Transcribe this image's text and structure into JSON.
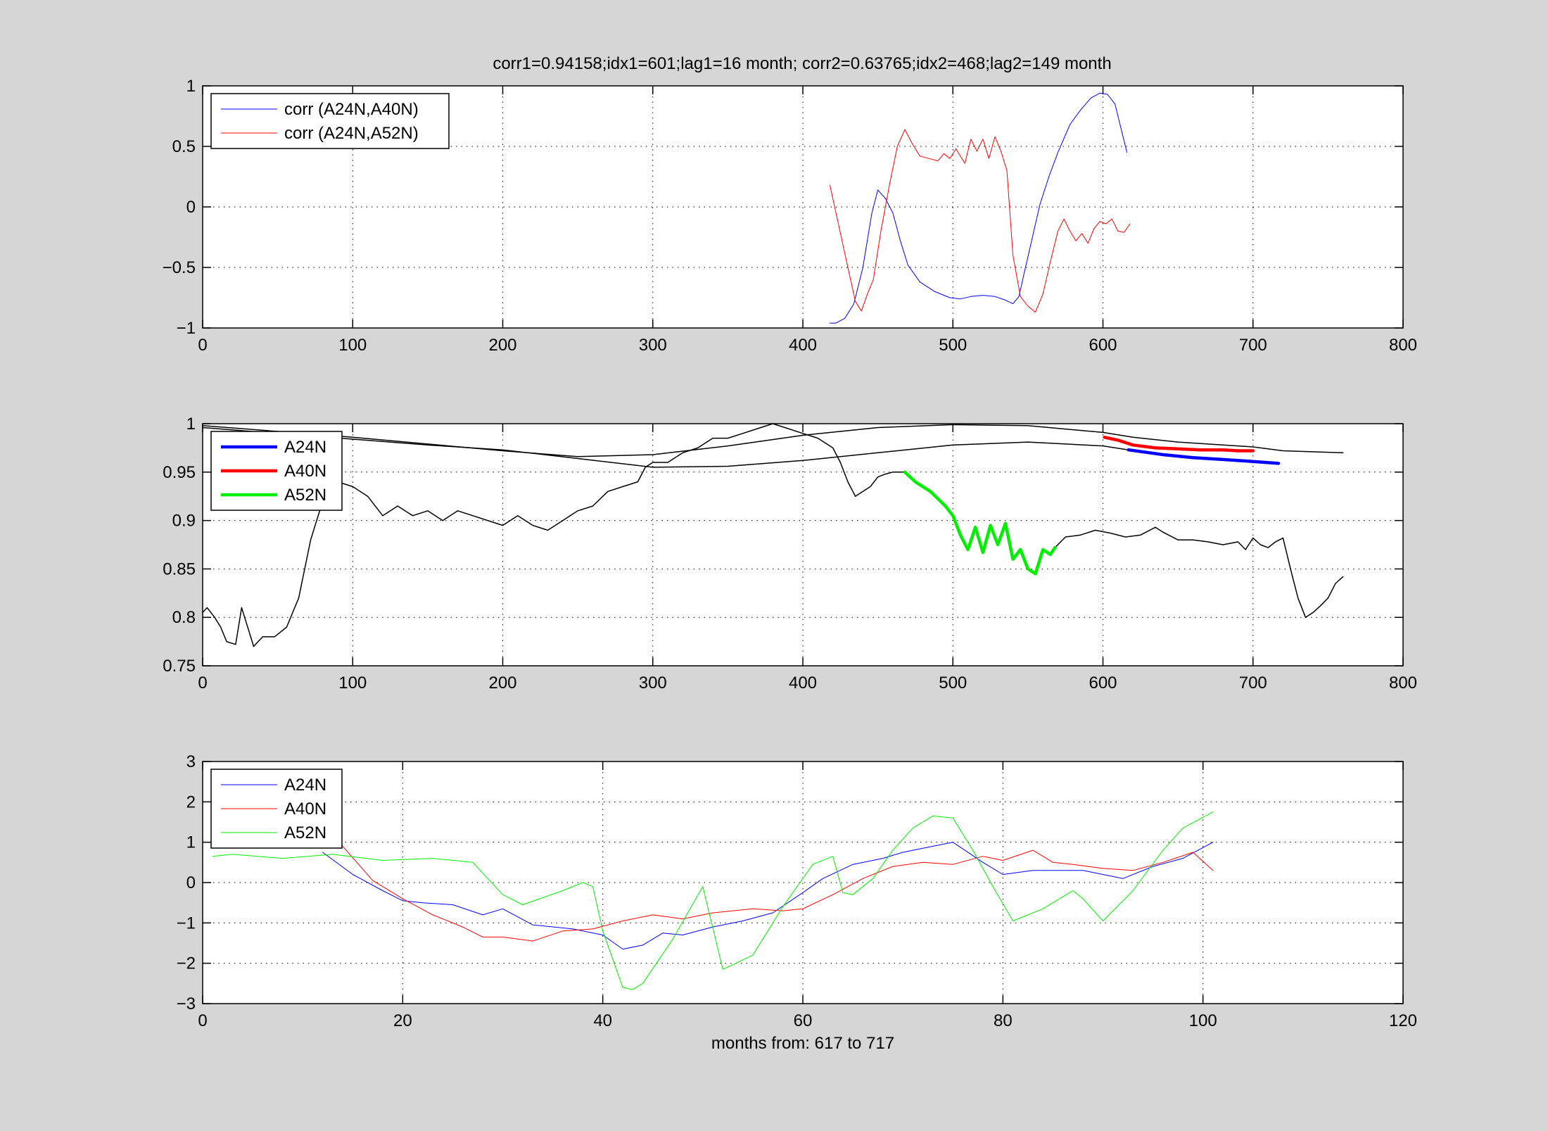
{
  "figure": {
    "background": "#d6d6d6",
    "axes_background": "#ffffff",
    "title": "corr1=0.94158;idx1=601;lag1=16 month;   corr2=0.63765;idx2=468;lag2=149 month"
  },
  "chart_data": [
    {
      "type": "line",
      "title": "corr1=0.94158;idx1=601;lag1=16 month;   corr2=0.63765;idx2=468;lag2=149 month",
      "xlabel": "",
      "ylabel": "",
      "xlim": [
        0,
        800
      ],
      "ylim": [
        -1,
        1
      ],
      "xticks": [
        0,
        100,
        200,
        300,
        400,
        500,
        600,
        700,
        800
      ],
      "yticks": [
        -1,
        -0.5,
        0,
        0.5,
        1
      ],
      "xtick_labels": [
        "0",
        "100",
        "200",
        "300",
        "400",
        "500",
        "600",
        "700",
        "800"
      ],
      "ytick_labels": [
        "−1",
        "−0.5",
        "0",
        "0.5",
        "1"
      ],
      "grid": true,
      "legend_position": "top-left",
      "series": [
        {
          "name": "corr (A24N,A40N)",
          "color": "#0000ff",
          "width": 1,
          "x": [
            418,
            422,
            428,
            434,
            440,
            446,
            450,
            455,
            460,
            465,
            470,
            478,
            488,
            498,
            505,
            512,
            520,
            528,
            535,
            540,
            544,
            548,
            553,
            558,
            564,
            570,
            578,
            585,
            592,
            598,
            603,
            608,
            612,
            616
          ],
          "y": [
            -0.96,
            -0.96,
            -0.92,
            -0.8,
            -0.5,
            -0.05,
            0.14,
            0.07,
            -0.05,
            -0.28,
            -0.48,
            -0.62,
            -0.7,
            -0.75,
            -0.76,
            -0.74,
            -0.73,
            -0.74,
            -0.77,
            -0.8,
            -0.74,
            -0.52,
            -0.25,
            0.02,
            0.25,
            0.45,
            0.68,
            0.8,
            0.9,
            0.94,
            0.93,
            0.85,
            0.65,
            0.45
          ]
        },
        {
          "name": "corr (A24N,A52N)",
          "color": "#ff0000",
          "width": 1,
          "x": [
            418,
            423,
            430,
            435,
            439,
            443,
            447,
            452,
            458,
            463,
            468,
            473,
            478,
            484,
            490,
            494,
            498,
            502,
            508,
            512,
            516,
            520,
            524,
            528,
            532,
            536,
            540,
            545,
            550,
            555,
            560,
            565,
            570,
            574,
            578,
            582,
            586,
            590,
            594,
            598,
            602,
            606,
            610,
            614,
            618
          ],
          "y": [
            0.18,
            -0.1,
            -0.5,
            -0.78,
            -0.86,
            -0.72,
            -0.6,
            -0.2,
            0.2,
            0.5,
            0.64,
            0.52,
            0.42,
            0.4,
            0.38,
            0.44,
            0.4,
            0.48,
            0.36,
            0.56,
            0.46,
            0.56,
            0.4,
            0.58,
            0.46,
            0.3,
            -0.4,
            -0.74,
            -0.82,
            -0.87,
            -0.72,
            -0.45,
            -0.2,
            -0.1,
            -0.2,
            -0.28,
            -0.22,
            -0.3,
            -0.18,
            -0.12,
            -0.14,
            -0.1,
            -0.2,
            -0.21,
            -0.14
          ]
        }
      ]
    },
    {
      "type": "line",
      "title": "",
      "xlabel": "",
      "ylabel": "",
      "xlim": [
        0,
        800
      ],
      "ylim": [
        0.75,
        1
      ],
      "xticks": [
        0,
        100,
        200,
        300,
        400,
        500,
        600,
        700,
        800
      ],
      "yticks": [
        0.75,
        0.8,
        0.85,
        0.9,
        0.95,
        1
      ],
      "xtick_labels": [
        "0",
        "100",
        "200",
        "300",
        "400",
        "500",
        "600",
        "700",
        "800"
      ],
      "ytick_labels": [
        "0.75",
        "0.8",
        "0.85",
        "0.9",
        "0.95",
        "1"
      ],
      "grid": true,
      "legend_position": "top-left",
      "series": [
        {
          "name": "",
          "color": "#000000",
          "width": 1.5,
          "x": [
            0,
            50,
            100,
            150,
            200,
            250,
            300,
            350,
            400,
            450,
            500,
            550,
            600,
            620,
            650,
            700,
            720,
            760
          ],
          "y": [
            0.998,
            0.992,
            0.986,
            0.979,
            0.972,
            0.966,
            0.968,
            0.977,
            0.988,
            0.996,
            0.999,
            0.998,
            0.991,
            0.986,
            0.981,
            0.976,
            0.972,
            0.97
          ]
        },
        {
          "name": "",
          "color": "#000000",
          "width": 1.5,
          "x": [
            0,
            50,
            100,
            150,
            200,
            250,
            300,
            350,
            400,
            450,
            500,
            550,
            600,
            617
          ],
          "y": [
            0.996,
            0.99,
            0.984,
            0.978,
            0.973,
            0.964,
            0.955,
            0.956,
            0.962,
            0.97,
            0.978,
            0.981,
            0.977,
            0.973
          ]
        },
        {
          "name": "",
          "color": "#000000",
          "width": 1.5,
          "x": [
            0,
            3,
            8,
            12,
            16,
            22,
            26,
            30,
            34,
            40,
            48,
            56,
            64,
            72,
            80,
            85,
            90,
            100,
            110,
            120,
            130,
            140,
            150,
            160,
            170,
            180,
            190,
            200,
            210,
            220,
            230,
            240,
            250,
            260,
            270,
            280,
            290,
            295,
            300,
            310,
            320,
            330,
            340,
            350,
            360,
            370,
            380,
            390,
            400,
            410,
            420,
            425,
            430,
            435,
            440,
            445,
            450,
            455,
            460,
            468
          ],
          "y": [
            0.805,
            0.81,
            0.8,
            0.79,
            0.775,
            0.772,
            0.81,
            0.79,
            0.77,
            0.78,
            0.78,
            0.79,
            0.82,
            0.88,
            0.92,
            0.935,
            0.94,
            0.935,
            0.925,
            0.905,
            0.915,
            0.905,
            0.91,
            0.9,
            0.91,
            0.905,
            0.9,
            0.895,
            0.905,
            0.895,
            0.89,
            0.9,
            0.91,
            0.915,
            0.93,
            0.935,
            0.94,
            0.955,
            0.96,
            0.96,
            0.97,
            0.975,
            0.985,
            0.985,
            0.99,
            0.995,
            1.0,
            0.995,
            0.99,
            0.985,
            0.975,
            0.96,
            0.94,
            0.925,
            0.93,
            0.935,
            0.945,
            0.948,
            0.95,
            0.95
          ]
        },
        {
          "name": "",
          "color": "#000000",
          "width": 1.5,
          "x": [
            568,
            575,
            585,
            595,
            605,
            615,
            625,
            635,
            640,
            650,
            660,
            670,
            680,
            690,
            695,
            700,
            705,
            710,
            715,
            720,
            725,
            730,
            735,
            740,
            745,
            750,
            755,
            760
          ],
          "y": [
            0.872,
            0.883,
            0.885,
            0.89,
            0.887,
            0.883,
            0.885,
            0.893,
            0.888,
            0.88,
            0.88,
            0.878,
            0.875,
            0.878,
            0.87,
            0.882,
            0.875,
            0.872,
            0.878,
            0.882,
            0.85,
            0.82,
            0.8,
            0.805,
            0.812,
            0.82,
            0.835,
            0.842
          ]
        },
        {
          "name": "A24N",
          "color": "#0000ff",
          "width": 4.5,
          "x": [
            617,
            640,
            660,
            680,
            700,
            717
          ],
          "y": [
            0.973,
            0.968,
            0.965,
            0.963,
            0.961,
            0.959
          ]
        },
        {
          "name": "A40N",
          "color": "#ff0000",
          "width": 4.5,
          "x": [
            601,
            610,
            620,
            635,
            650,
            665,
            680,
            690,
            700
          ],
          "y": [
            0.986,
            0.983,
            0.978,
            0.975,
            0.974,
            0.973,
            0.973,
            0.972,
            0.972
          ]
        },
        {
          "name": "A52N",
          "color": "#00ee00",
          "width": 4.5,
          "x": [
            468,
            475,
            485,
            495,
            500,
            505,
            510,
            515,
            520,
            525,
            530,
            535,
            540,
            545,
            550,
            555,
            560,
            565,
            568
          ],
          "y": [
            0.95,
            0.94,
            0.93,
            0.915,
            0.905,
            0.885,
            0.87,
            0.893,
            0.867,
            0.895,
            0.875,
            0.897,
            0.86,
            0.87,
            0.85,
            0.845,
            0.87,
            0.865,
            0.872
          ]
        }
      ]
    },
    {
      "type": "line",
      "title": "",
      "xlabel": "months from: 617 to 717",
      "ylabel": "",
      "xlim": [
        0,
        120
      ],
      "ylim": [
        -3,
        3
      ],
      "xticks": [
        0,
        20,
        40,
        60,
        80,
        100,
        120
      ],
      "yticks": [
        -3,
        -2,
        -1,
        0,
        1,
        2,
        3
      ],
      "xtick_labels": [
        "0",
        "20",
        "40",
        "60",
        "80",
        "100",
        "120"
      ],
      "ytick_labels": [
        "−3",
        "−2",
        "−1",
        "0",
        "1",
        "2",
        "3"
      ],
      "grid": true,
      "legend_position": "top-left",
      "series": [
        {
          "name": "A24N",
          "color": "#0000ff",
          "width": 1,
          "x": [
            12,
            15,
            18,
            20,
            22,
            25,
            28,
            30,
            33,
            37,
            40,
            42,
            44,
            46,
            48,
            51,
            54,
            57,
            60,
            62,
            65,
            68,
            70,
            72,
            75,
            78,
            80,
            83,
            85,
            88,
            90,
            92,
            95,
            98,
            101
          ],
          "y": [
            0.75,
            0.2,
            -0.2,
            -0.45,
            -0.5,
            -0.55,
            -0.8,
            -0.65,
            -1.05,
            -1.15,
            -1.3,
            -1.65,
            -1.55,
            -1.25,
            -1.3,
            -1.1,
            -0.95,
            -0.75,
            -0.25,
            0.1,
            0.45,
            0.6,
            0.75,
            0.85,
            1.0,
            0.5,
            0.2,
            0.3,
            0.3,
            0.3,
            0.2,
            0.1,
            0.4,
            0.6,
            1.0
          ]
        },
        {
          "name": "A40N",
          "color": "#ff0000",
          "width": 1,
          "x": [
            1,
            10,
            14,
            17,
            20,
            23,
            26,
            28,
            30,
            33,
            36,
            39,
            42,
            45,
            48,
            51,
            55,
            58,
            60,
            63,
            66,
            69,
            72,
            75,
            78,
            80,
            83,
            85,
            87,
            90,
            93,
            96,
            99,
            101
          ],
          "y": [
            2.75,
            2.75,
            0.9,
            0.05,
            -0.4,
            -0.8,
            -1.1,
            -1.35,
            -1.35,
            -1.45,
            -1.2,
            -1.15,
            -0.95,
            -0.8,
            -0.9,
            -0.75,
            -0.65,
            -0.7,
            -0.65,
            -0.3,
            0.1,
            0.4,
            0.5,
            0.45,
            0.65,
            0.55,
            0.8,
            0.5,
            0.45,
            0.35,
            0.3,
            0.5,
            0.75,
            0.3
          ]
        },
        {
          "name": "A52N",
          "color": "#00ee00",
          "width": 1,
          "x": [
            1,
            3,
            8,
            13,
            18,
            23,
            27,
            30,
            32,
            36,
            38,
            39,
            40,
            42,
            43,
            44,
            47,
            50,
            52,
            55,
            58,
            61,
            63,
            64,
            65,
            67,
            69,
            71,
            73,
            75,
            77,
            79,
            81,
            84,
            87,
            88,
            90,
            93,
            96,
            98,
            101
          ],
          "y": [
            0.65,
            0.7,
            0.6,
            0.7,
            0.55,
            0.6,
            0.5,
            -0.3,
            -0.55,
            -0.2,
            0.0,
            -0.1,
            -1.2,
            -2.6,
            -2.65,
            -2.5,
            -1.4,
            -0.1,
            -2.15,
            -1.8,
            -0.6,
            0.45,
            0.65,
            -0.25,
            -0.3,
            0.1,
            0.8,
            1.35,
            1.65,
            1.6,
            0.8,
            -0.1,
            -0.95,
            -0.65,
            -0.2,
            -0.4,
            -0.95,
            -0.2,
            0.8,
            1.35,
            1.75
          ]
        }
      ]
    }
  ]
}
